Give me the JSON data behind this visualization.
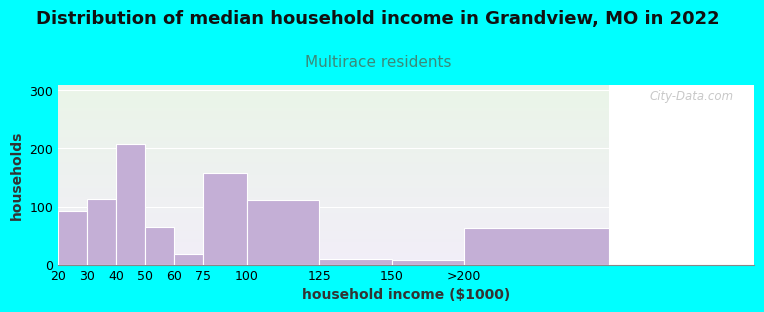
{
  "title": "Distribution of median household income in Grandview, MO in 2022",
  "subtitle": "Multirace residents",
  "xlabel": "household income ($1000)",
  "ylabel": "households",
  "bar_labels": [
    "20",
    "30",
    "40",
    "50",
    "60",
    "75",
    "100",
    "125",
    "150",
    ">200"
  ],
  "bar_values": [
    93,
    113,
    208,
    65,
    18,
    157,
    111,
    10,
    8,
    63
  ],
  "bar_left_edges": [
    10,
    20,
    30,
    40,
    50,
    60,
    75,
    100,
    125,
    150
  ],
  "bar_widths": [
    10,
    10,
    10,
    10,
    10,
    15,
    25,
    25,
    25,
    50
  ],
  "bar_color": "#c4afd6",
  "bar_edgecolor": "#ffffff",
  "ylim": [
    0,
    310
  ],
  "yticks": [
    0,
    100,
    200,
    300
  ],
  "xlim": [
    10,
    200
  ],
  "background_outer": "#00FFFF",
  "background_inner_top": "#eaf5e8",
  "background_inner_bottom": "#f2eef8",
  "title_fontsize": 13,
  "subtitle_fontsize": 11,
  "subtitle_color": "#3a8a7a",
  "axis_label_fontsize": 10,
  "tick_fontsize": 9,
  "watermark": "City-Data.com"
}
